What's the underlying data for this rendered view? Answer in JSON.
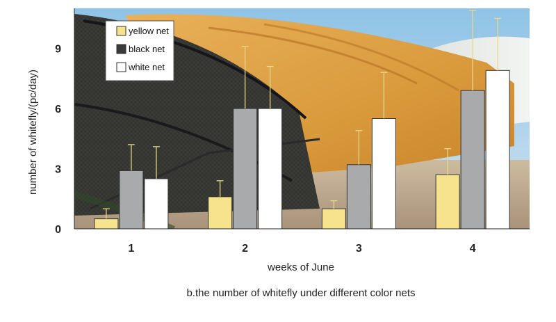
{
  "chart_data": {
    "type": "bar",
    "categories": [
      "1",
      "2",
      "3",
      "4"
    ],
    "xlabel": "weeks of June",
    "ylabel": "number of whitefly/(pc/day)",
    "caption": "b.the number of whitefly under different color nets",
    "ylim": [
      0,
      11
    ],
    "yticks": [
      0,
      3,
      6,
      9
    ],
    "legend_position": "top-left",
    "grid": false,
    "series": [
      {
        "name": "yellow net",
        "color": "#f7e38e",
        "values": [
          0.5,
          1.6,
          1.0,
          2.7
        ],
        "errors": [
          0.5,
          0.8,
          0.4,
          1.3
        ]
      },
      {
        "name": "black net",
        "color": "#a9aaac",
        "values": [
          2.9,
          6.0,
          3.2,
          6.9
        ],
        "errors": [
          1.3,
          3.1,
          1.7,
          4.0
        ]
      },
      {
        "name": "white net",
        "color": "#ffffff",
        "values": [
          2.5,
          6.0,
          5.5,
          7.9
        ],
        "errors": [
          1.6,
          2.1,
          2.3,
          2.6
        ]
      }
    ],
    "error_bar_color": "#e8d98a",
    "background": "photo of greenhouses covered with yellow, black and white nets"
  }
}
